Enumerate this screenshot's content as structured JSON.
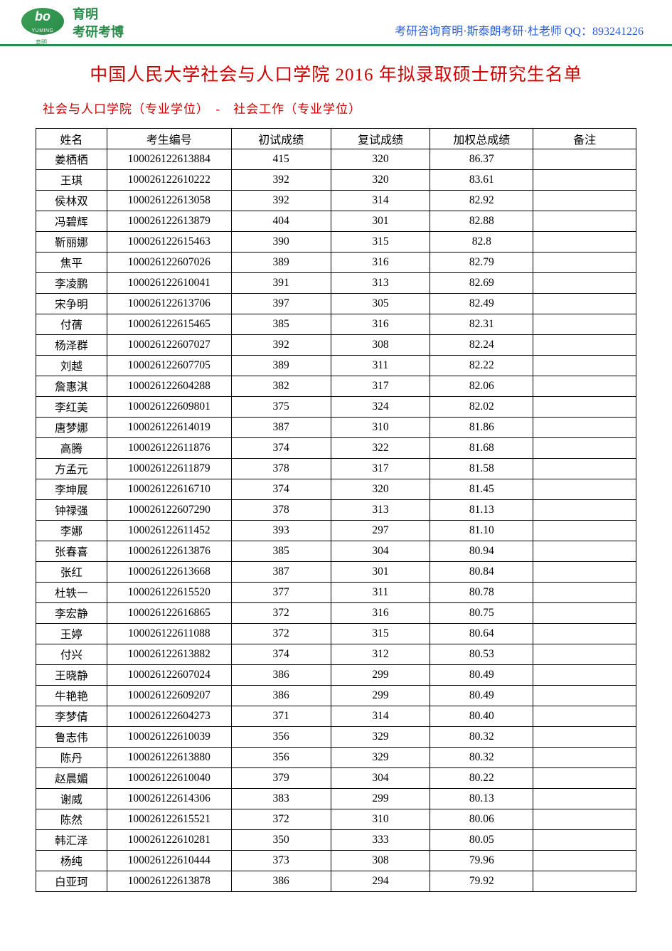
{
  "header": {
    "logo_top": "bo",
    "logo_pinyin": "YUMING",
    "logo_chn": "育明",
    "line1": "育明",
    "line2": "考研考博",
    "contact": "考研咨询育明·斯泰朗考研·杜老师 QQ：893241226"
  },
  "main_title": "中国人民大学社会与人口学院 2016 年拟录取硕士研究生名单",
  "sub_title": "社会与人口学院（专业学位）　-　社会工作（专业学位）",
  "colors": {
    "accent_green": "#2a8c4a",
    "title_red": "#cc0000",
    "contact_blue": "#2a5fd8",
    "border": "#000000",
    "background": "#ffffff"
  },
  "table": {
    "columns": [
      "姓名",
      "考生编号",
      "初试成绩",
      "复试成绩",
      "加权总成绩",
      "备注"
    ],
    "rows": [
      [
        "姜栖栖",
        "100026122613884",
        "415",
        "320",
        "86.37",
        ""
      ],
      [
        "王琪",
        "100026122610222",
        "392",
        "320",
        "83.61",
        ""
      ],
      [
        "侯林双",
        "100026122613058",
        "392",
        "314",
        "82.92",
        ""
      ],
      [
        "冯碧辉",
        "100026122613879",
        "404",
        "301",
        "82.88",
        ""
      ],
      [
        "靳丽娜",
        "100026122615463",
        "390",
        "315",
        "82.8",
        ""
      ],
      [
        "焦平",
        "100026122607026",
        "389",
        "316",
        "82.79",
        ""
      ],
      [
        "李凌鹏",
        "100026122610041",
        "391",
        "313",
        "82.69",
        ""
      ],
      [
        "宋争明",
        "100026122613706",
        "397",
        "305",
        "82.49",
        ""
      ],
      [
        "付蒨",
        "100026122615465",
        "385",
        "316",
        "82.31",
        ""
      ],
      [
        "杨泽群",
        "100026122607027",
        "392",
        "308",
        "82.24",
        ""
      ],
      [
        "刘越",
        "100026122607705",
        "389",
        "311",
        "82.22",
        ""
      ],
      [
        "詹惠淇",
        "100026122604288",
        "382",
        "317",
        "82.06",
        ""
      ],
      [
        "李红美",
        "100026122609801",
        "375",
        "324",
        "82.02",
        ""
      ],
      [
        "唐梦娜",
        "100026122614019",
        "387",
        "310",
        "81.86",
        ""
      ],
      [
        "高腾",
        "100026122611876",
        "374",
        "322",
        "81.68",
        ""
      ],
      [
        "方孟元",
        "100026122611879",
        "378",
        "317",
        "81.58",
        ""
      ],
      [
        "李坤展",
        "100026122616710",
        "374",
        "320",
        "81.45",
        ""
      ],
      [
        "钟禄强",
        "100026122607290",
        "378",
        "313",
        "81.13",
        ""
      ],
      [
        "李娜",
        "100026122611452",
        "393",
        "297",
        "81.10",
        ""
      ],
      [
        "张春喜",
        "100026122613876",
        "385",
        "304",
        "80.94",
        ""
      ],
      [
        "张红",
        "100026122613668",
        "387",
        "301",
        "80.84",
        ""
      ],
      [
        "杜轶一",
        "100026122615520",
        "377",
        "311",
        "80.78",
        ""
      ],
      [
        "李宏静",
        "100026122616865",
        "372",
        "316",
        "80.75",
        ""
      ],
      [
        "王婷",
        "100026122611088",
        "372",
        "315",
        "80.64",
        ""
      ],
      [
        "付兴",
        "100026122613882",
        "374",
        "312",
        "80.53",
        ""
      ],
      [
        "王晓静",
        "100026122607024",
        "386",
        "299",
        "80.49",
        ""
      ],
      [
        "牛艳艳",
        "100026122609207",
        "386",
        "299",
        "80.49",
        ""
      ],
      [
        "李梦倩",
        "100026122604273",
        "371",
        "314",
        "80.40",
        ""
      ],
      [
        "鲁志伟",
        "100026122610039",
        "356",
        "329",
        "80.32",
        ""
      ],
      [
        "陈丹",
        "100026122613880",
        "356",
        "329",
        "80.32",
        ""
      ],
      [
        "赵晨媚",
        "100026122610040",
        "379",
        "304",
        "80.22",
        ""
      ],
      [
        "谢威",
        "100026122614306",
        "383",
        "299",
        "80.13",
        ""
      ],
      [
        "陈然",
        "100026122615521",
        "372",
        "310",
        "80.06",
        ""
      ],
      [
        "韩汇泽",
        "100026122610281",
        "350",
        "333",
        "80.05",
        ""
      ],
      [
        "杨纯",
        "100026122610444",
        "373",
        "308",
        "79.96",
        ""
      ],
      [
        "白亚珂",
        "100026122613878",
        "386",
        "294",
        "79.92",
        ""
      ]
    ]
  }
}
